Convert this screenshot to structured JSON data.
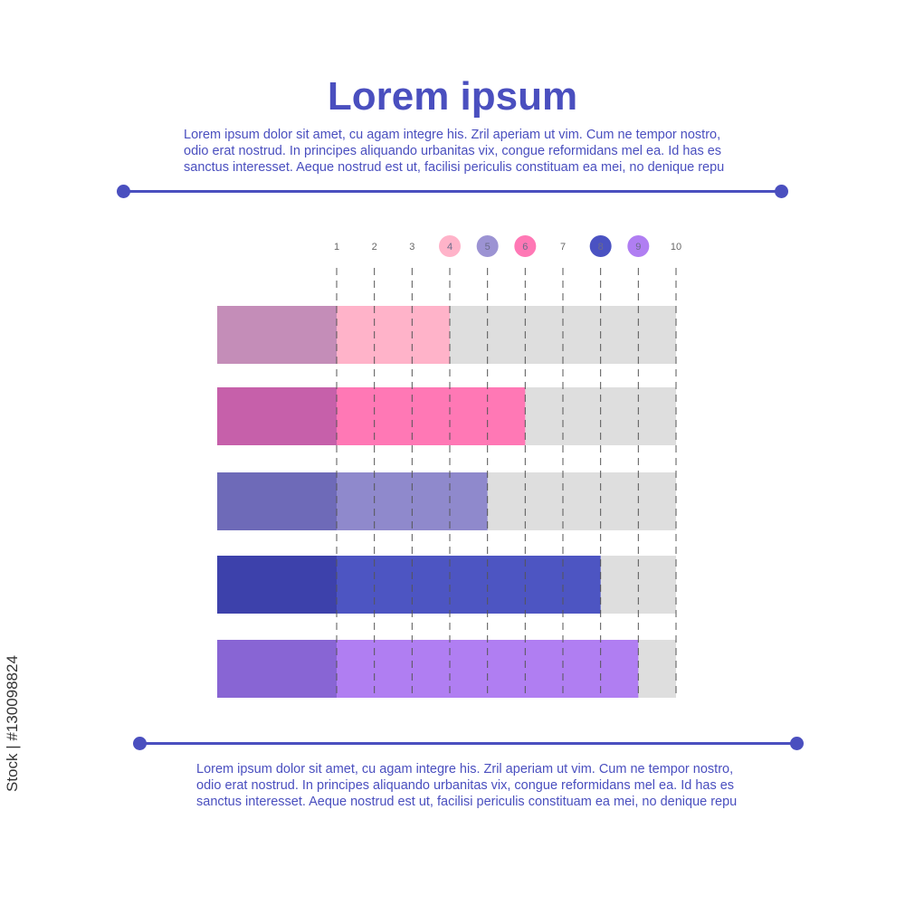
{
  "header": {
    "title": "Lorem ipsum",
    "paragraph": "Lorem ipsum dolor sit amet, cu agam integre his. Zril aperiam ut vim. Cum ne tempor nostro,\nodio erat nostrud. In principes aliquando urbanitas vix, congue reformidans mel ea. Id has es\nsanctus interesset. Aeque nostrud est ut, facilisi periculis constituam ea mei, no denique repu"
  },
  "footer": {
    "paragraph": "Lorem ipsum dolor sit amet, cu agam integre his. Zril aperiam ut vim. Cum ne tempor nostro,\nodio erat nostrud. In principes aliquando urbanitas vix, congue reformidans mel ea. Id has es\nsanctus interesset. Aeque nostrud est ut, facilisi periculis constituam ea mei, no denique repu"
  },
  "watermark": "Stock | #130098824",
  "colors": {
    "accent": "#4a4fbf",
    "track": "#dedede",
    "dashes": "#555555"
  },
  "chart_data": {
    "type": "bar",
    "orientation": "horizontal",
    "x_ticks": [
      1,
      2,
      3,
      4,
      5,
      6,
      7,
      8,
      9,
      10
    ],
    "xlim": [
      1,
      10
    ],
    "grid": "dashed vertical",
    "highlighted_ticks": [
      {
        "tick": 4,
        "color": "#ffb3c9"
      },
      {
        "tick": 5,
        "color": "#9c93d3"
      },
      {
        "tick": 6,
        "color": "#ff78b5"
      },
      {
        "tick": 8,
        "color": "#4a52c2"
      },
      {
        "tick": 9,
        "color": "#b07ef2"
      }
    ],
    "bars": [
      {
        "value": 4,
        "head_color": "#c48db8",
        "fill_color": "#ffb3c9"
      },
      {
        "value": 6,
        "head_color": "#c660aa",
        "fill_color": "#ff78b5"
      },
      {
        "value": 5,
        "head_color": "#6e6ab8",
        "fill_color": "#8f89cc"
      },
      {
        "value": 8,
        "head_color": "#3d41ab",
        "fill_color": "#4d55c2"
      },
      {
        "value": 9,
        "head_color": "#8865d4",
        "fill_color": "#b07ef2"
      }
    ]
  }
}
